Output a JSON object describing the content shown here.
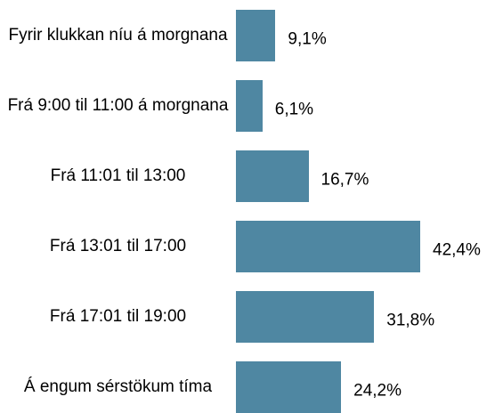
{
  "chart_data": {
    "type": "bar",
    "orientation": "horizontal",
    "color": "#4f87a2",
    "categories": [
      "Fyrir klukkan níu á morgnana",
      "Frá 9:00 til 11:00 á morgnana",
      "Frá 11:01 til 13:00",
      "Frá 13:01 til 17:00",
      "Frá 17:01 til 19:00",
      "Á engum sérstökum tíma"
    ],
    "values": [
      9.1,
      6.1,
      16.7,
      42.4,
      31.8,
      24.2
    ],
    "value_labels": [
      "9,1%",
      "6,1%",
      "16,7%",
      "42,4%",
      "31,8%",
      "24,2%"
    ]
  }
}
